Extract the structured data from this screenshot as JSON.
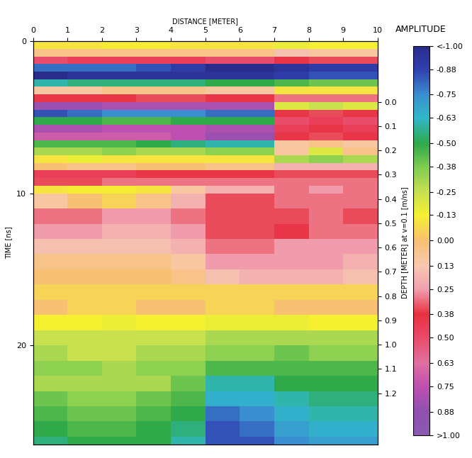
{
  "chart_data": {
    "type": "heatmap",
    "xlabel": "DISTANCE [METER]",
    "ylabel": "TIME [ns]",
    "y2label": "DEPTH [METER] at v=0.1 [m/ns]",
    "xlim": [
      0,
      10
    ],
    "xticks": [
      0,
      1,
      2,
      3,
      4,
      5,
      6,
      7,
      8,
      9,
      10
    ],
    "ylim": [
      26.5,
      0
    ],
    "yticks": [
      0,
      10,
      20
    ],
    "y2lim": [
      1.41,
      -0.25
    ],
    "y2ticks": [
      0.0,
      0.1,
      0.2,
      0.3,
      0.4,
      0.5,
      0.6,
      0.7,
      0.8,
      0.9,
      1.0,
      1.1,
      1.2
    ],
    "distance_edges": [
      0,
      1,
      2,
      3,
      4,
      5,
      6,
      7,
      8,
      9,
      10
    ],
    "time_edges": [
      0,
      0.5,
      1,
      1.5,
      2,
      2.5,
      3,
      3.5,
      4,
      4.5,
      5,
      5.5,
      6,
      6.5,
      7,
      7.5,
      8,
      8.5,
      9,
      9.5,
      10,
      11,
      12,
      13,
      14,
      15,
      16,
      17,
      18,
      19,
      20,
      21,
      22,
      23,
      24,
      25,
      26,
      26.5
    ],
    "cells": [
      [
        -0.1,
        -0.1,
        -0.12,
        -0.12,
        -0.1,
        -0.1,
        -0.1,
        -0.15,
        -0.13,
        -0.13
      ],
      [
        0.05,
        0.05,
        0.05,
        0.05,
        0.05,
        0.05,
        0.05,
        0.15,
        0.1,
        0.1
      ],
      [
        0.5,
        0.45,
        0.45,
        0.45,
        0.45,
        0.5,
        0.5,
        0.4,
        0.35,
        0.35
      ],
      [
        -0.8,
        -0.8,
        -0.8,
        -0.85,
        -0.9,
        -1.0,
        -1.0,
        -0.95,
        -0.9,
        -0.9
      ],
      [
        -1.0,
        -0.95,
        -0.95,
        -0.95,
        -0.95,
        -0.95,
        -0.95,
        -0.9,
        -0.85,
        -0.85
      ],
      [
        -0.6,
        -0.55,
        -0.55,
        -0.55,
        -0.55,
        -0.5,
        -0.5,
        -0.45,
        -0.4,
        -0.4
      ],
      [
        0.1,
        0.1,
        0.05,
        0.05,
        0.05,
        0.1,
        0.1,
        -0.1,
        -0.1,
        -0.1
      ],
      [
        0.4,
        0.4,
        0.4,
        0.35,
        0.35,
        0.4,
        0.4,
        0.3,
        0.3,
        0.3
      ],
      [
        0.85,
        0.85,
        0.8,
        0.8,
        0.8,
        0.8,
        0.8,
        -0.2,
        -0.25,
        -0.2
      ],
      [
        -0.85,
        -0.8,
        -0.75,
        -0.75,
        -0.75,
        -0.8,
        -0.8,
        0.4,
        0.35,
        0.4
      ],
      [
        -0.5,
        -0.5,
        -0.45,
        -0.45,
        -0.5,
        -0.5,
        -0.5,
        0.5,
        0.45,
        0.5
      ],
      [
        0.8,
        0.8,
        0.75,
        0.75,
        0.75,
        0.8,
        0.8,
        0.45,
        0.4,
        0.45
      ],
      [
        0.7,
        0.7,
        0.7,
        0.7,
        0.75,
        0.85,
        0.85,
        0.4,
        0.35,
        0.4
      ],
      [
        -0.45,
        -0.45,
        -0.45,
        -0.5,
        -0.55,
        -0.6,
        -0.6,
        0.1,
        0.05,
        0.1
      ],
      [
        -0.3,
        -0.3,
        -0.35,
        -0.3,
        -0.3,
        -0.35,
        -0.35,
        0.1,
        -0.2,
        0.05
      ],
      [
        -0.1,
        -0.15,
        -0.1,
        -0.1,
        -0.1,
        -0.1,
        -0.1,
        -0.3,
        -0.35,
        -0.3
      ],
      [
        0.0,
        0.05,
        0.05,
        0.0,
        0.0,
        0.05,
        0.05,
        0.2,
        0.2,
        0.2
      ],
      [
        0.45,
        0.45,
        0.45,
        0.4,
        0.4,
        0.4,
        0.4,
        0.35,
        0.35,
        0.35
      ],
      [
        0.35,
        0.35,
        0.3,
        0.3,
        0.3,
        0.3,
        0.3,
        0.3,
        0.3,
        0.3
      ],
      [
        -0.1,
        -0.12,
        -0.12,
        -0.1,
        0.1,
        0.2,
        0.2,
        0.3,
        0.25,
        0.3
      ],
      [
        0.1,
        0.0,
        -0.05,
        0.05,
        0.2,
        0.35,
        0.35,
        0.3,
        0.3,
        0.3
      ],
      [
        0.3,
        0.3,
        0.25,
        0.25,
        0.3,
        0.35,
        0.35,
        0.35,
        0.3,
        0.35
      ],
      [
        0.25,
        0.25,
        0.2,
        0.2,
        0.25,
        0.35,
        0.35,
        0.4,
        0.3,
        0.3
      ],
      [
        0.15,
        0.15,
        0.15,
        0.15,
        0.2,
        0.3,
        0.3,
        0.25,
        0.25,
        0.25
      ],
      [
        0.05,
        0.05,
        0.05,
        0.05,
        0.1,
        0.25,
        0.25,
        0.25,
        0.25,
        0.2
      ],
      [
        0.0,
        0.0,
        0.0,
        0.0,
        0.05,
        0.15,
        0.2,
        0.2,
        0.2,
        0.15
      ],
      [
        -0.05,
        -0.05,
        -0.05,
        -0.05,
        -0.05,
        -0.05,
        -0.05,
        -0.05,
        -0.05,
        -0.05
      ],
      [
        0.0,
        -0.05,
        -0.05,
        0.0,
        0.0,
        -0.05,
        -0.05,
        0.0,
        0.0,
        0.0
      ],
      [
        -0.13,
        -0.13,
        -0.15,
        -0.13,
        -0.13,
        -0.15,
        -0.15,
        -0.15,
        -0.13,
        -0.13
      ],
      [
        -0.25,
        -0.25,
        -0.25,
        -0.25,
        -0.25,
        -0.3,
        -0.3,
        -0.3,
        -0.3,
        -0.3
      ],
      [
        -0.3,
        -0.25,
        -0.25,
        -0.3,
        -0.3,
        -0.35,
        -0.35,
        -0.4,
        -0.35,
        -0.35
      ],
      [
        -0.35,
        -0.35,
        -0.3,
        -0.35,
        -0.35,
        -0.45,
        -0.45,
        -0.45,
        -0.45,
        -0.45
      ],
      [
        -0.3,
        -0.3,
        -0.3,
        -0.3,
        -0.4,
        -0.6,
        -0.6,
        -0.5,
        -0.5,
        -0.5
      ],
      [
        -0.4,
        -0.35,
        -0.35,
        -0.4,
        -0.45,
        -0.65,
        -0.65,
        -0.6,
        -0.55,
        -0.55
      ],
      [
        -0.45,
        -0.4,
        -0.4,
        -0.45,
        -0.5,
        -0.8,
        -0.75,
        -0.65,
        -0.6,
        -0.6
      ],
      [
        -0.5,
        -0.45,
        -0.45,
        -0.5,
        -0.55,
        -0.85,
        -0.8,
        -0.7,
        -0.65,
        -0.65
      ],
      [
        -0.55,
        -0.5,
        -0.5,
        -0.5,
        -0.6,
        -0.85,
        -0.85,
        -0.75,
        -0.7,
        -0.7
      ]
    ],
    "colorbar": {
      "label": "AMPLITUDE",
      "range": [
        -1,
        1
      ],
      "ticks": [
        {
          "value": -1,
          "label": "<-1.00"
        },
        -0.88,
        -0.75,
        -0.63,
        {
          "value": -0.5,
          "label": "-0.50"
        },
        -0.38,
        -0.25,
        -0.13,
        {
          "value": 0,
          "label": "0.00"
        },
        0.13,
        0.25,
        0.38,
        {
          "value": 0.5,
          "label": "0.50"
        },
        0.63,
        0.75,
        0.88,
        {
          "value": 1,
          "label": ">1.00"
        }
      ]
    }
  }
}
